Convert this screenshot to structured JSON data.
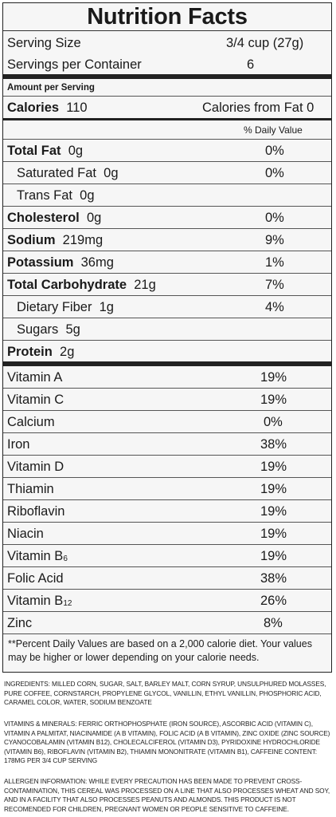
{
  "title": "Nutrition Facts",
  "serving_size_label": "Serving Size",
  "serving_size_value": "3/4 cup  (27g)",
  "servings_label": "Servings per Container",
  "servings_value": "6",
  "amount_per_serving": "Amount per Serving",
  "calories_label": "Calories",
  "calories_value": "110",
  "calories_fat": "Calories from Fat 0",
  "daily_value_header": "% Daily Value",
  "nutrients": [
    {
      "label": "Total Fat",
      "amount": "0g",
      "pct": "0%"
    },
    {
      "label": "Saturated Fat",
      "amount": "0g",
      "pct": "0%"
    },
    {
      "label": "Trans Fat",
      "amount": "0g",
      "pct": ""
    },
    {
      "label": "Cholesterol",
      "amount": "0g",
      "pct": "0%"
    },
    {
      "label": "Sodium",
      "amount": "219mg",
      "pct": "9%"
    },
    {
      "label": "Potassium",
      "amount": "36mg",
      "pct": "1%"
    },
    {
      "label": "Total Carbohydrate",
      "amount": "21g",
      "pct": "7%"
    },
    {
      "label": "Dietary Fiber",
      "amount": "1g",
      "pct": "4%"
    },
    {
      "label": "Sugars",
      "amount": "5g",
      "pct": ""
    },
    {
      "label": "Protein",
      "amount": "2g",
      "pct": ""
    }
  ],
  "vitamins": [
    {
      "label": "Vitamin A",
      "pct": "19%"
    },
    {
      "label": "Vitamin C",
      "pct": "19%"
    },
    {
      "label": "Calcium",
      "pct": "0%"
    },
    {
      "label": "Iron",
      "pct": "38%"
    },
    {
      "label": "Vitamin D",
      "pct": "19%"
    },
    {
      "label": "Thiamin",
      "pct": "19%"
    },
    {
      "label": "Riboflavin",
      "pct": "19%"
    },
    {
      "label": "Niacin",
      "pct": "19%"
    },
    {
      "label": "Vitamin B",
      "sub": "6",
      "pct": "19%"
    },
    {
      "label": "Folic Acid",
      "pct": "38%"
    },
    {
      "label": "Vitamin B",
      "sub": "12",
      "pct": "26%"
    },
    {
      "label": "Zinc",
      "pct": "8%"
    }
  ],
  "footnote": "**Percent Daily Values are based on a 2,000 calorie diet.  Your values may be higher or lower depending on your calorie needs.",
  "ingredients": "INGREDIENTS: MILLED CORN, SUGAR, SALT, BARLEY MALT, CORN SYRUP, UNSULPHURED MOLASSES, PURE COFFEE, CORNSTARCH, PROPYLENE GLYCOL, VANILLIN, ETHYL VANILLIN, PHOSPHORIC ACID, CARAMEL COLOR, WATER, SODIUM BENZOATE",
  "vitamins_minerals": "VITAMINS & MINERALS: FERRIC ORTHOPHOSPHATE (IRON SOURCE), ASCORBIC ACID (VITAMIN C), VITAMIN A PALMITAT, NIACINAMIDE (A B VITAMIN), FOLIC ACID (A B VITAMIN), ZINC OXIDE (ZINC SOURCE) CYANOCOBALAMIN (VITAMIN B12), CHOLECALCIFEROL (VITAMIN D3), PYRIDOXINE HYDROCHLORIDE (VITAMIN B6), RIBOFLAVIN (VITAMIN B2), THIAMIN MONONITRATE (VITAMIN B1), CAFFEINE CONTENT: 178mg PER 3/4 CUP SERVING",
  "allergen": "ALLERGEN INFORMATION: WHILE EVERY PRECAUTION HAS BEEN MADE TO PREVENT CROSS-CONTAMINATION, THIS CEREAL WAS PROCESSED ON A LINE THAT ALSO PROCESSES WHEAT AND SOY, AND IN A FACILITY THAT ALSO PROCESSES PEANUTS AND ALMONDS. THIS PRODUCT IS NOT RECOMENDED FOR CHILDREN, PREGNANT WOMEN OR PEOPLE SENSITIVE TO CAFFEINE."
}
